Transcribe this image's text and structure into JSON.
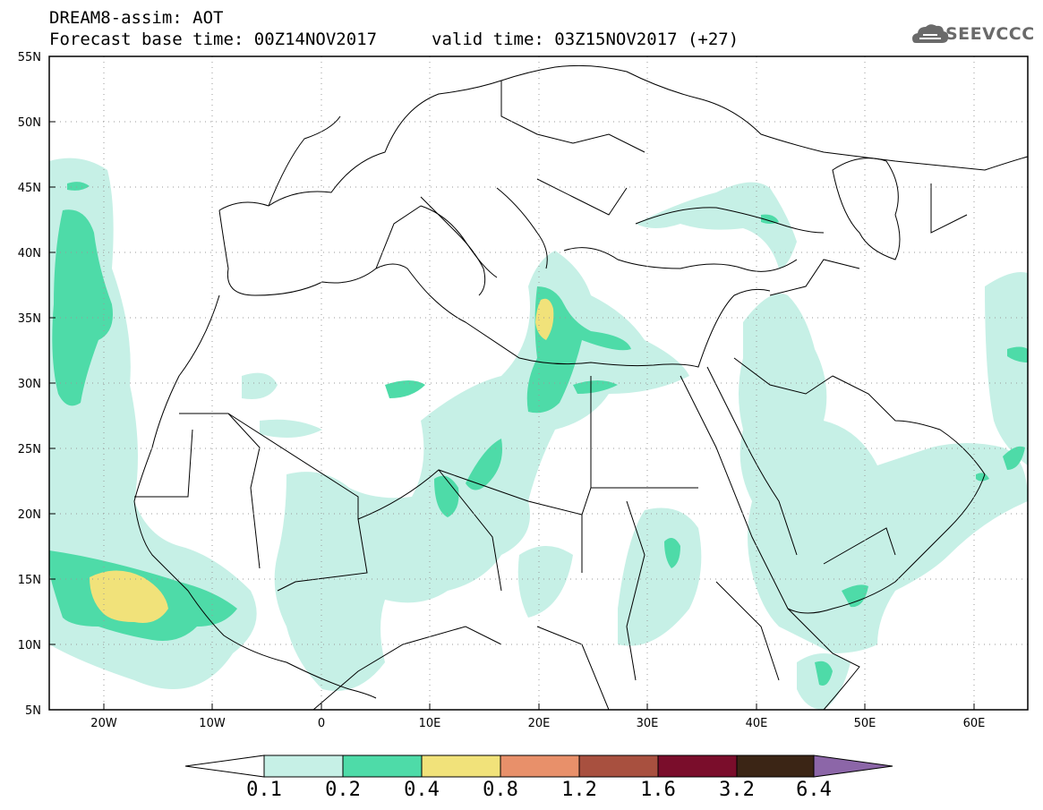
{
  "header": {
    "line1": "DREAM8-assim: AOT",
    "base": "Forecast base time: 00Z14NOV2017",
    "valid": "valid time: 03Z15NOV2017 (+27)"
  },
  "logo": {
    "name": "SEEVCCC",
    "icon": "cloud-logo-icon"
  },
  "map": {
    "lat_labels": [
      "55N",
      "50N",
      "45N",
      "40N",
      "35N",
      "30N",
      "25N",
      "20N",
      "15N",
      "10N",
      "5N"
    ],
    "lon_labels": [
      "20W",
      "10W",
      "0",
      "10E",
      "20E",
      "30E",
      "40E",
      "50E",
      "60E"
    ],
    "extent": {
      "lon": [
        -25,
        65
      ],
      "lat": [
        5,
        55
      ]
    },
    "grid": "dotted"
  },
  "colorbar": {
    "levels": [
      "0.1",
      "0.2",
      "0.4",
      "0.8",
      "1.2",
      "1.6",
      "3.2",
      "6.4"
    ],
    "colors": [
      "#c6f0e6",
      "#4edba8",
      "#f1e27a",
      "#e8906a",
      "#a8503f",
      "#7a0d2b",
      "#3b2515",
      "#8c66a8"
    ]
  }
}
